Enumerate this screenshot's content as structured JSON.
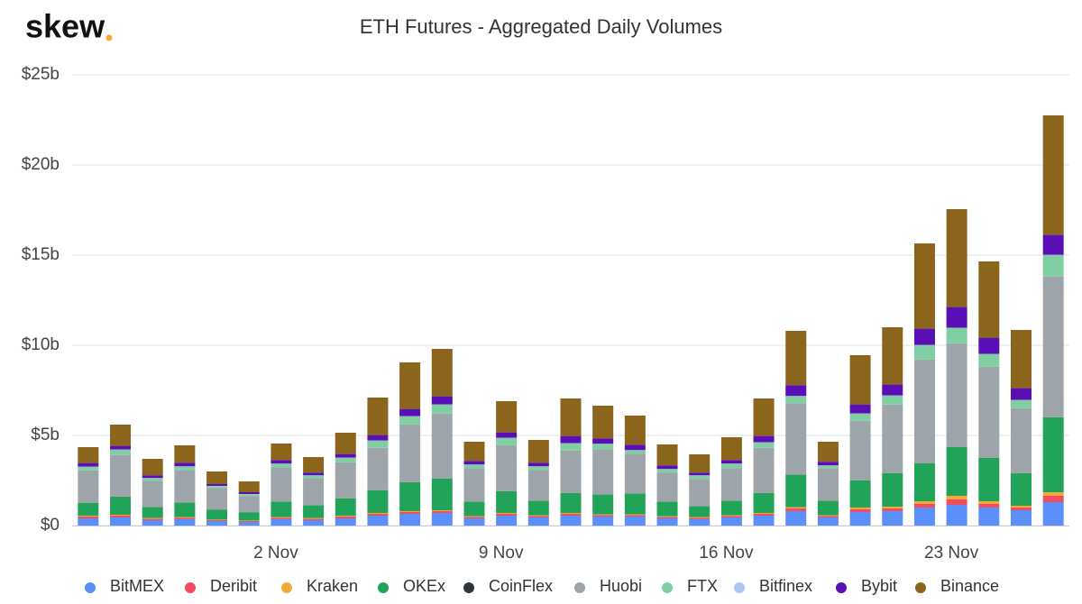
{
  "logo": "skew",
  "chart_data": {
    "type": "bar",
    "stacked": true,
    "title": "ETH Futures - Aggregated Daily Volumes",
    "categories": [
      null,
      null,
      null,
      null,
      null,
      null,
      "2 Nov",
      null,
      null,
      null,
      null,
      null,
      null,
      "9 Nov",
      null,
      null,
      null,
      null,
      null,
      null,
      "16 Nov",
      null,
      null,
      null,
      null,
      null,
      null,
      "23 Nov",
      null,
      null,
      null
    ],
    "ylim": [
      0,
      25
    ],
    "yticks": [
      {
        "value": 0,
        "label": "$0"
      },
      {
        "value": 5,
        "label": "$5b"
      },
      {
        "value": 10,
        "label": "$10b"
      },
      {
        "value": 15,
        "label": "$15b"
      },
      {
        "value": 20,
        "label": "$20b"
      },
      {
        "value": 25,
        "label": "$25b"
      }
    ],
    "grid": true,
    "legend": "bottom",
    "series": [
      {
        "name": "BitMEX",
        "color": "#5b8ff9",
        "values": [
          0.4,
          0.45,
          0.3,
          0.35,
          0.25,
          0.2,
          0.35,
          0.3,
          0.4,
          0.55,
          0.65,
          0.7,
          0.4,
          0.55,
          0.45,
          0.55,
          0.5,
          0.5,
          0.4,
          0.35,
          0.45,
          0.55,
          0.8,
          0.45,
          0.75,
          0.8,
          1.0,
          1.15,
          1.0,
          0.85,
          1.3
        ]
      },
      {
        "name": "Deribit",
        "color": "#f04e5e",
        "values": [
          0.1,
          0.1,
          0.08,
          0.08,
          0.05,
          0.05,
          0.08,
          0.08,
          0.1,
          0.1,
          0.1,
          0.1,
          0.08,
          0.1,
          0.08,
          0.1,
          0.08,
          0.08,
          0.08,
          0.08,
          0.08,
          0.1,
          0.15,
          0.08,
          0.15,
          0.15,
          0.2,
          0.3,
          0.2,
          0.15,
          0.35
        ]
      },
      {
        "name": "Kraken",
        "color": "#f2a93b",
        "values": [
          0.05,
          0.05,
          0.04,
          0.04,
          0.03,
          0.03,
          0.04,
          0.04,
          0.05,
          0.05,
          0.05,
          0.05,
          0.04,
          0.05,
          0.04,
          0.05,
          0.04,
          0.04,
          0.04,
          0.04,
          0.04,
          0.05,
          0.07,
          0.04,
          0.1,
          0.1,
          0.15,
          0.2,
          0.15,
          0.1,
          0.2
        ]
      },
      {
        "name": "OKEx",
        "color": "#22a35a",
        "values": [
          0.7,
          1.0,
          0.6,
          0.8,
          0.55,
          0.45,
          0.85,
          0.7,
          0.95,
          1.25,
          1.6,
          1.75,
          0.8,
          1.2,
          0.8,
          1.1,
          1.1,
          1.15,
          0.8,
          0.6,
          0.8,
          1.1,
          1.8,
          0.8,
          1.5,
          1.85,
          2.1,
          2.7,
          2.4,
          1.8,
          4.15
        ]
      },
      {
        "name": "CoinFlex",
        "color": "#2f3438",
        "values": [
          0.01,
          0.01,
          0.01,
          0.01,
          0.01,
          0.01,
          0.01,
          0.01,
          0.01,
          0.01,
          0.01,
          0.01,
          0.01,
          0.01,
          0.01,
          0.01,
          0.01,
          0.01,
          0.01,
          0.01,
          0.01,
          0.01,
          0.01,
          0.01,
          0.01,
          0.01,
          0.01,
          0.01,
          0.01,
          0.01,
          0.01
        ]
      },
      {
        "name": "Huobi",
        "color": "#9da4aa",
        "values": [
          1.8,
          2.3,
          1.45,
          1.8,
          1.2,
          0.9,
          1.9,
          1.5,
          2.0,
          2.35,
          3.2,
          3.6,
          1.85,
          2.55,
          1.7,
          2.35,
          2.5,
          2.2,
          1.6,
          1.5,
          1.8,
          2.5,
          3.95,
          1.8,
          3.3,
          3.8,
          5.75,
          5.75,
          5.05,
          3.6,
          7.8
        ]
      },
      {
        "name": "FTX",
        "color": "#7fcfa3",
        "values": [
          0.2,
          0.3,
          0.15,
          0.2,
          0.1,
          0.1,
          0.2,
          0.15,
          0.25,
          0.4,
          0.45,
          0.5,
          0.2,
          0.4,
          0.2,
          0.4,
          0.3,
          0.2,
          0.2,
          0.2,
          0.25,
          0.3,
          0.4,
          0.15,
          0.4,
          0.5,
          0.8,
          0.85,
          0.7,
          0.45,
          1.2
        ]
      },
      {
        "name": "Bitfinex",
        "color": "#a9c8f2",
        "values": [
          0.01,
          0.01,
          0.01,
          0.01,
          0.01,
          0.01,
          0.01,
          0.01,
          0.01,
          0.01,
          0.01,
          0.01,
          0.01,
          0.01,
          0.01,
          0.01,
          0.01,
          0.01,
          0.01,
          0.01,
          0.01,
          0.01,
          0.01,
          0.01,
          0.01,
          0.01,
          0.01,
          0.01,
          0.01,
          0.01,
          0.01
        ]
      },
      {
        "name": "Bybit",
        "color": "#5a0fb4",
        "values": [
          0.2,
          0.2,
          0.15,
          0.2,
          0.1,
          0.1,
          0.2,
          0.15,
          0.2,
          0.3,
          0.4,
          0.45,
          0.2,
          0.3,
          0.2,
          0.4,
          0.3,
          0.3,
          0.2,
          0.15,
          0.2,
          0.35,
          0.6,
          0.2,
          0.5,
          0.6,
          0.9,
          1.15,
          0.9,
          0.65,
          1.1
        ]
      },
      {
        "name": "Binance",
        "color": "#8b651b",
        "values": [
          0.88,
          1.18,
          0.91,
          0.96,
          0.7,
          0.6,
          0.91,
          0.86,
          1.18,
          2.08,
          2.58,
          2.63,
          1.06,
          1.73,
          1.26,
          2.08,
          1.81,
          1.61,
          1.16,
          1.01,
          1.26,
          2.08,
          3.01,
          1.11,
          2.73,
          3.18,
          4.73,
          5.43,
          4.23,
          3.23,
          6.63
        ]
      }
    ]
  }
}
